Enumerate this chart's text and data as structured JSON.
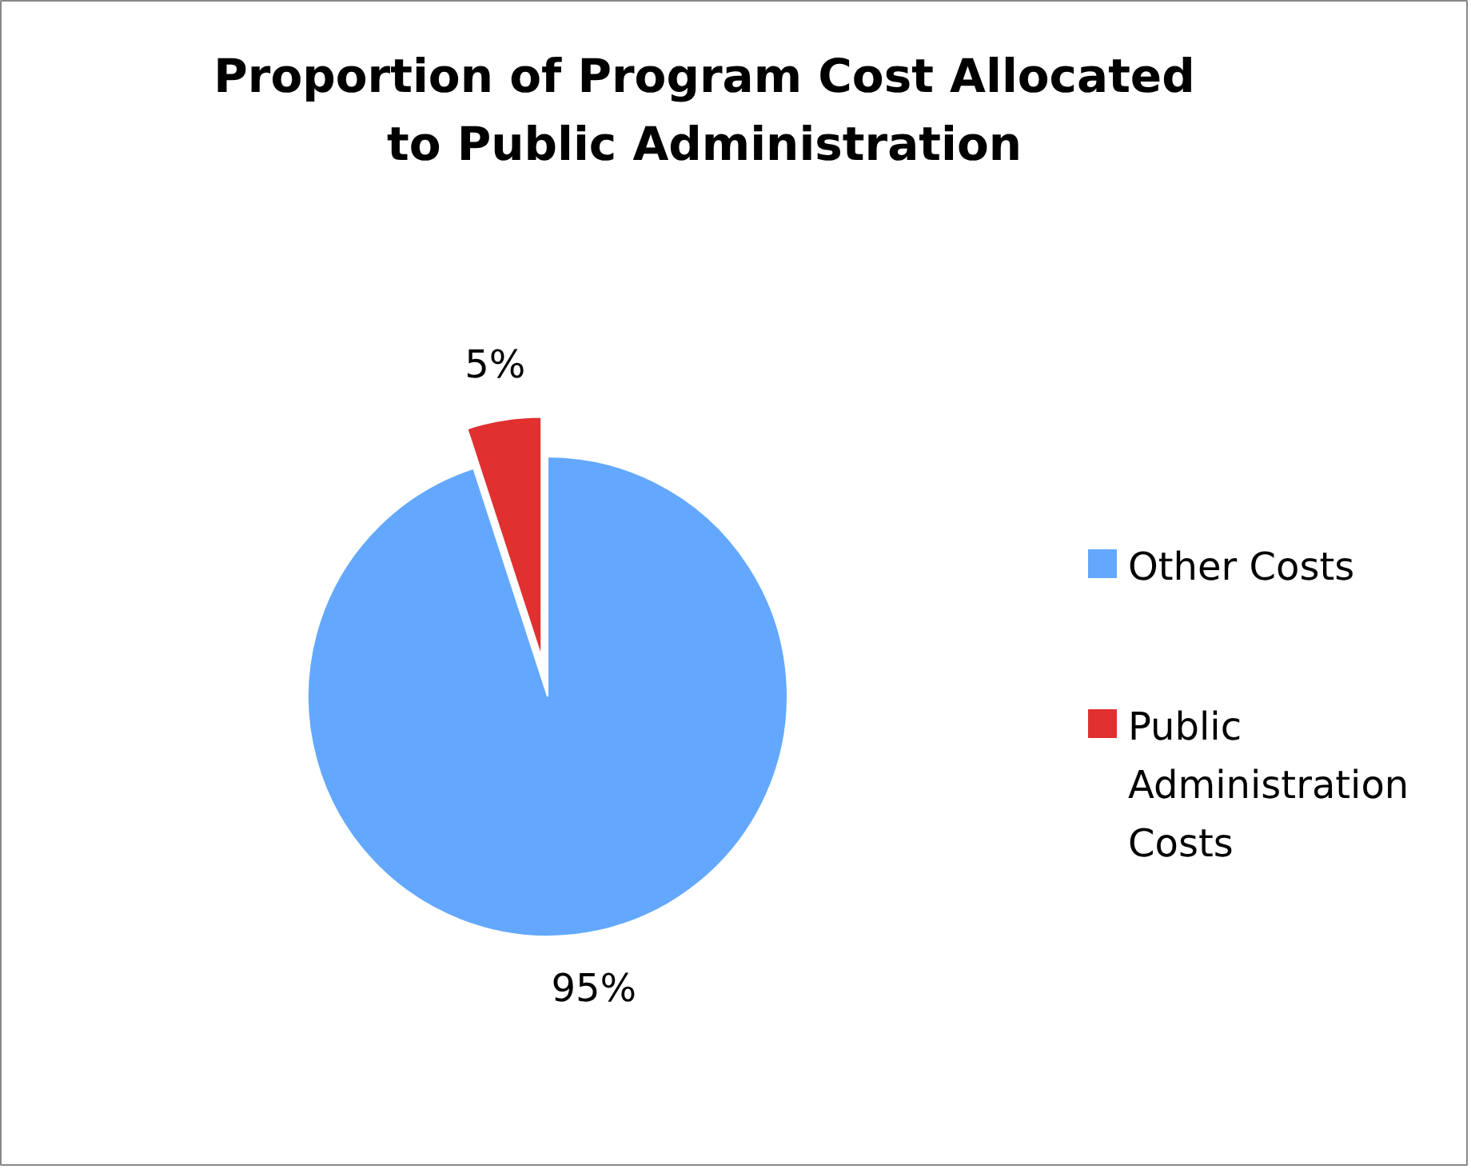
{
  "chart_data": {
    "type": "pie",
    "title": "Proportion of Program Cost Allocated to Public Administration",
    "categories": [
      "Other Costs",
      "Public Administration Costs"
    ],
    "values": [
      95,
      5
    ],
    "colors": [
      "#63a8fe",
      "#e03030"
    ],
    "value_labels": [
      "95%",
      "5%"
    ],
    "legend": "right"
  }
}
